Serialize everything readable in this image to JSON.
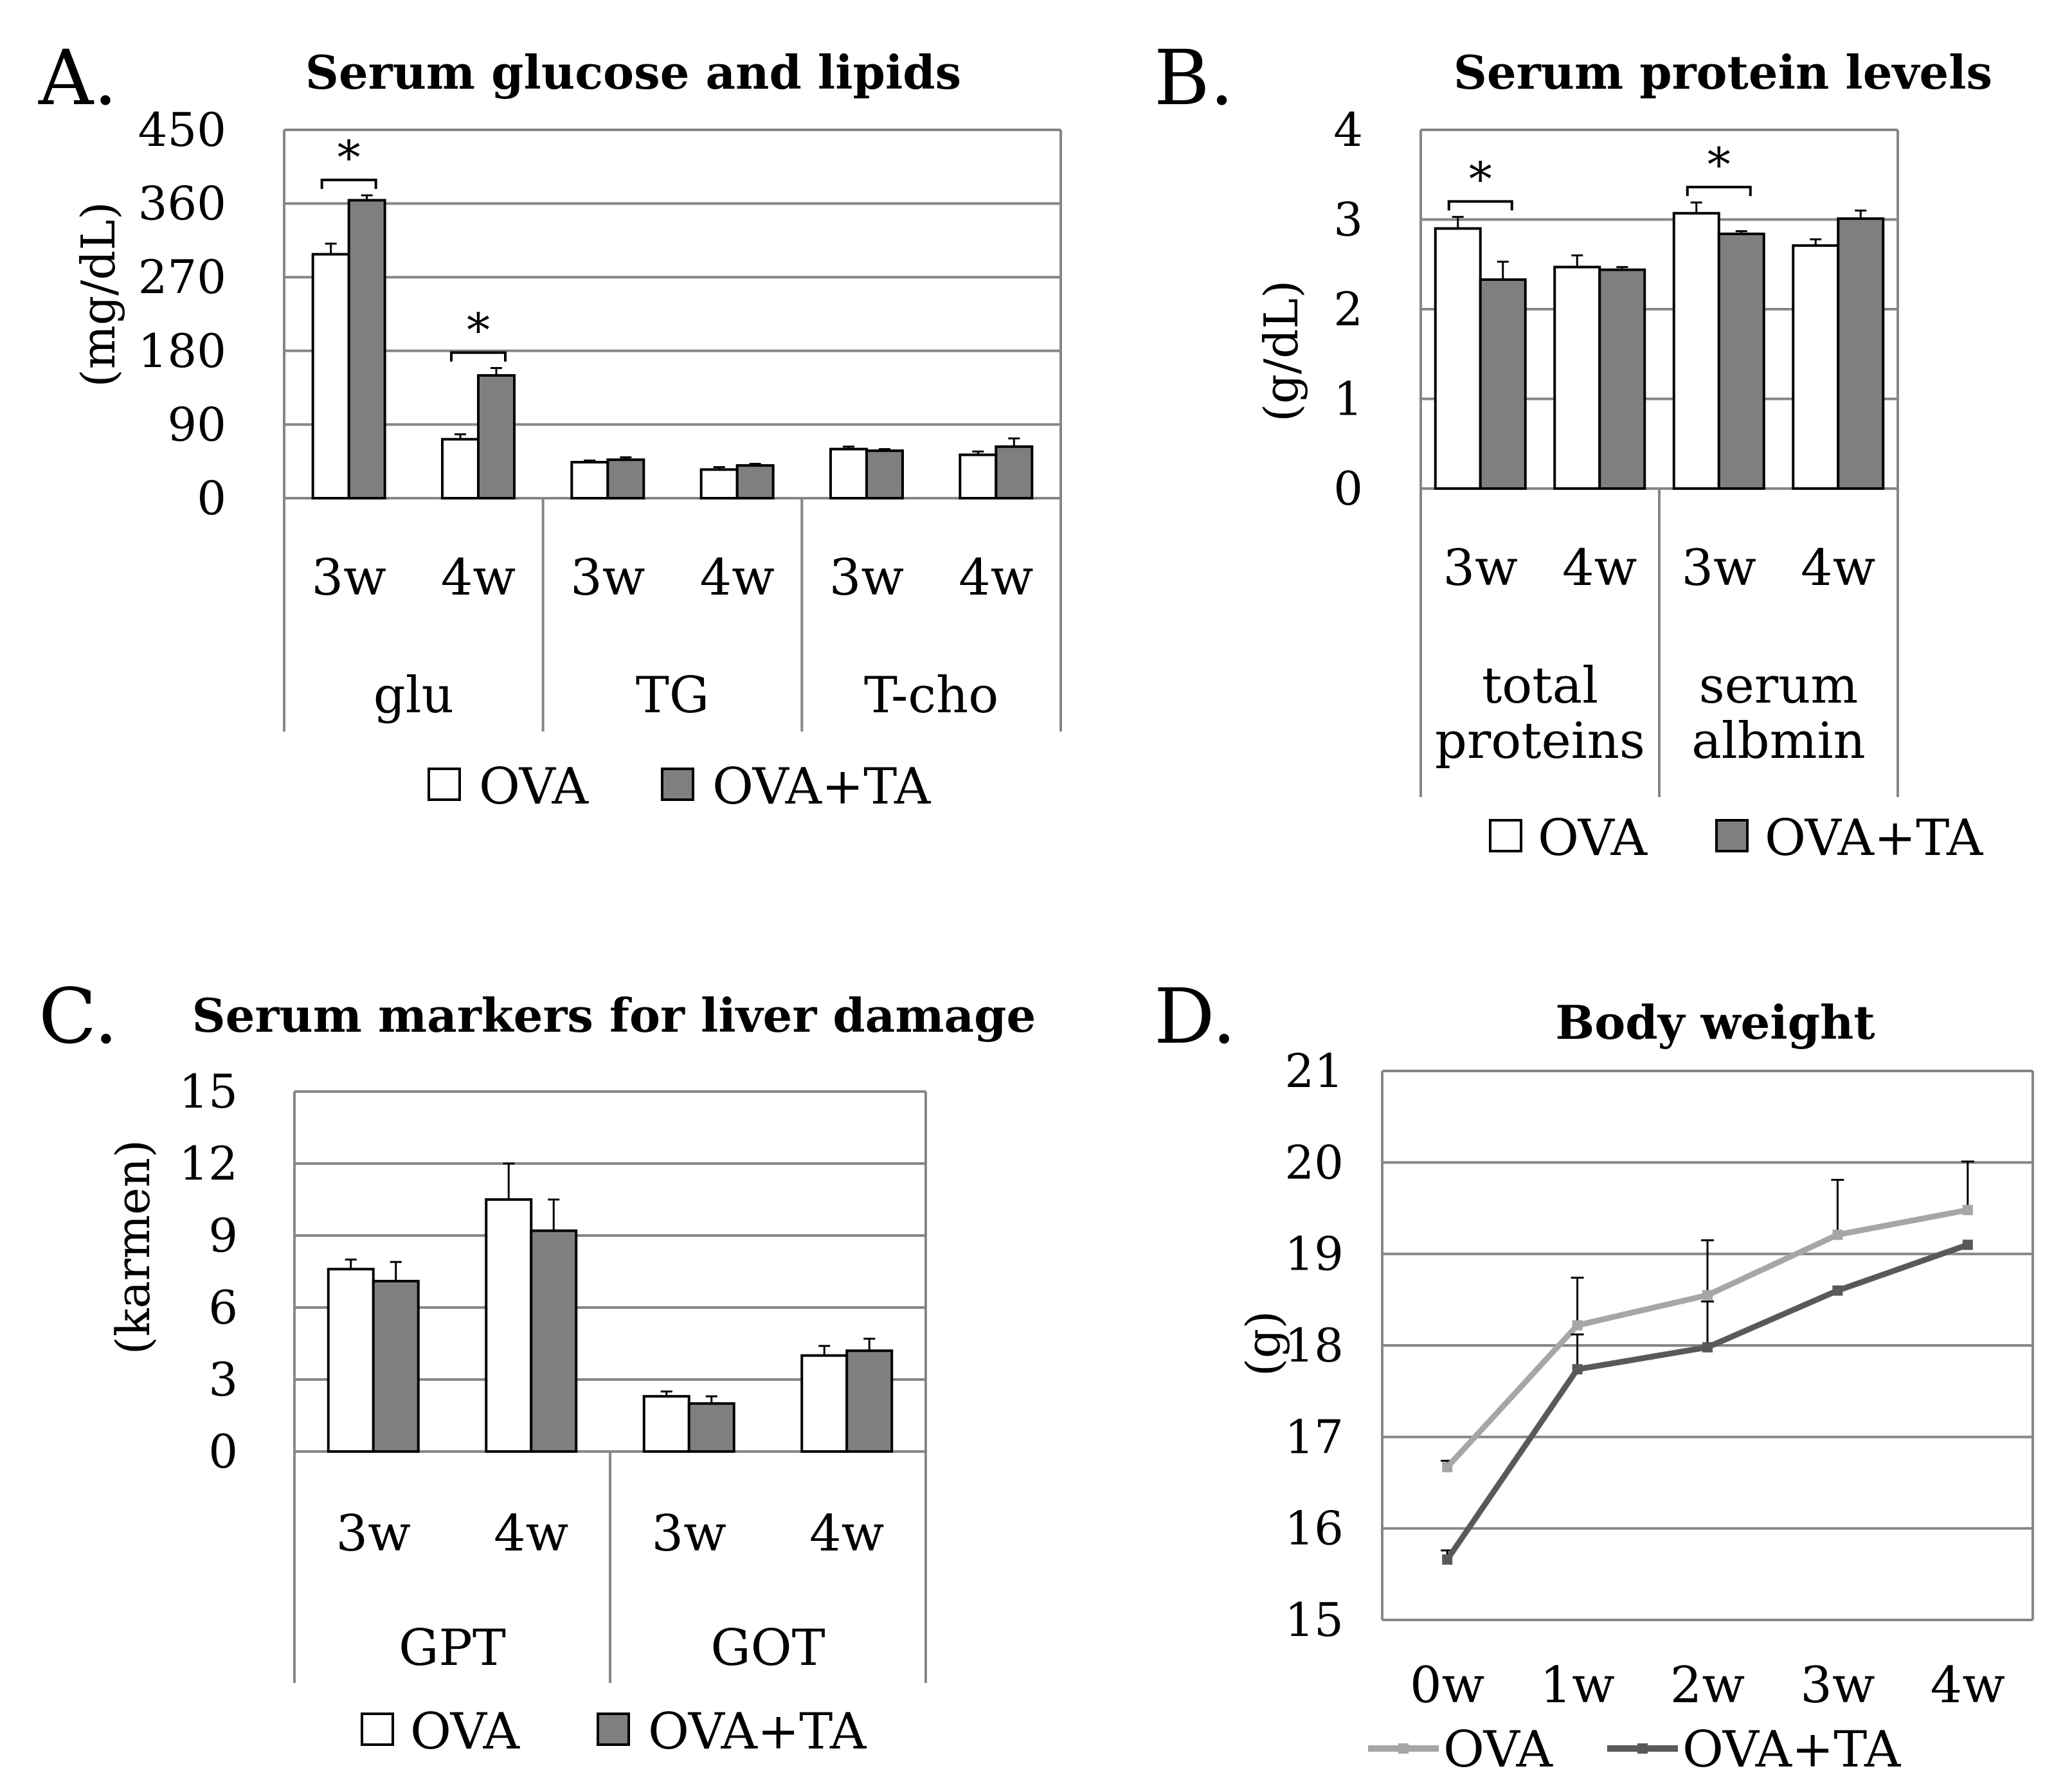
{
  "colors": {
    "ova": "#ffffff",
    "ova_ta": "#7f7f7f",
    "ova_line": "#a6a6a6",
    "ova_ta_line": "#595959",
    "grid": "#868686",
    "ink": "#000000"
  },
  "chart_data": [
    {
      "panel": "A.",
      "type": "bar",
      "title": "Serum glucose and lipids",
      "ylabel": "(mg/dL)",
      "ylim": [
        0,
        450
      ],
      "yticks": [
        0,
        90,
        180,
        270,
        360,
        450
      ],
      "groups": [
        "glu",
        "TG",
        "T-cho"
      ],
      "subcategories": [
        "3w",
        "4w",
        "3w",
        "4w",
        "3w",
        "4w"
      ],
      "series": [
        {
          "name": "OVA",
          "values": [
            298,
            72,
            44,
            35,
            60,
            53
          ],
          "errors": [
            13,
            6,
            2,
            3,
            3,
            4
          ]
        },
        {
          "name": "OVA+TA",
          "values": [
            364,
            150,
            47,
            40,
            58,
            63
          ],
          "errors": [
            6,
            9,
            3,
            2,
            2,
            10
          ]
        }
      ],
      "significance": [
        {
          "category_index": 0,
          "label": "*"
        },
        {
          "category_index": 1,
          "label": "*"
        }
      ],
      "legend": [
        "OVA",
        "OVA+TA"
      ]
    },
    {
      "panel": "B.",
      "type": "bar",
      "title": "Serum protein levels",
      "ylabel": "(g/dL)",
      "ylim": [
        0,
        4
      ],
      "yticks": [
        0,
        1,
        2,
        3,
        4
      ],
      "groups": [
        "total proteins",
        "serum albmin"
      ],
      "subcategories": [
        "3w",
        "4w",
        "3w",
        "4w"
      ],
      "series": [
        {
          "name": "OVA",
          "values": [
            2.9,
            2.47,
            3.07,
            2.71
          ],
          "errors": [
            0.13,
            0.13,
            0.12,
            0.07
          ]
        },
        {
          "name": "OVA+TA",
          "values": [
            2.33,
            2.44,
            2.84,
            3.01
          ],
          "errors": [
            0.2,
            0.03,
            0.03,
            0.09
          ]
        }
      ],
      "significance": [
        {
          "category_index": 0,
          "label": "*"
        },
        {
          "category_index": 2,
          "label": "*"
        }
      ],
      "legend": [
        "OVA",
        "OVA+TA"
      ]
    },
    {
      "panel": "C.",
      "type": "bar",
      "title": "Serum markers for liver damage",
      "ylabel": "(karmen)",
      "ylim": [
        0,
        15
      ],
      "yticks": [
        0,
        3,
        6,
        9,
        12,
        15
      ],
      "groups": [
        "GPT",
        "GOT"
      ],
      "subcategories": [
        "3w",
        "4w",
        "3w",
        "4w"
      ],
      "series": [
        {
          "name": "OVA",
          "values": [
            7.6,
            10.5,
            2.3,
            4.0
          ],
          "errors": [
            0.4,
            1.5,
            0.2,
            0.4
          ]
        },
        {
          "name": "OVA+TA",
          "values": [
            7.1,
            9.2,
            2.0,
            4.2
          ],
          "errors": [
            0.8,
            1.3,
            0.3,
            0.5
          ]
        }
      ],
      "significance": [],
      "legend": [
        "OVA",
        "OVA+TA"
      ]
    },
    {
      "panel": "D.",
      "type": "line",
      "title": "Body weight",
      "ylabel": "(g)",
      "ylim": [
        15,
        21
      ],
      "yticks": [
        15,
        16,
        17,
        18,
        19,
        20,
        21
      ],
      "categories": [
        "0w",
        "1w",
        "2w",
        "3w",
        "4w"
      ],
      "series": [
        {
          "name": "OVA",
          "values": [
            16.67,
            18.22,
            18.55,
            19.21,
            19.48
          ],
          "errors": [
            0.07,
            0.52,
            0.6,
            0.6,
            0.53
          ]
        },
        {
          "name": "OVA+TA",
          "values": [
            15.66,
            17.74,
            17.98,
            18.6,
            19.1
          ],
          "errors": [
            0.1,
            0.38,
            0.5,
            0.0,
            0.0
          ]
        }
      ],
      "legend": [
        "OVA",
        "OVA+TA"
      ]
    }
  ]
}
